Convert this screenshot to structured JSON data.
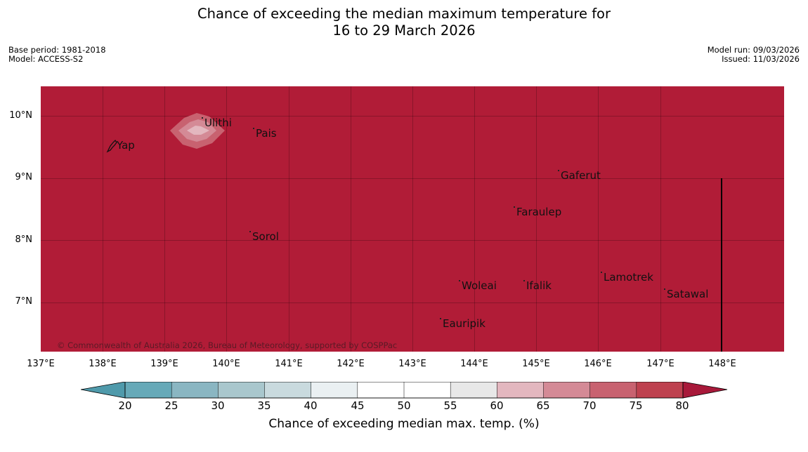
{
  "title_line1": "Chance of exceeding the median maximum temperature for",
  "title_line2": "16 to 29 March 2026",
  "meta_left": [
    "Base period: 1981-2018",
    "Model: ACCESS-S2"
  ],
  "meta_right": [
    "Model run: 09/03/2026",
    "Issued: 11/03/2026"
  ],
  "map": {
    "background_color": "#b11c37",
    "lon_ticks": [
      "137°E",
      "138°E",
      "139°E",
      "140°E",
      "141°E",
      "142°E",
      "143°E",
      "144°E",
      "145°E",
      "146°E",
      "147°E",
      "148°E"
    ],
    "lat_ticks": [
      "10°N",
      "9°N",
      "8°N",
      "7°N"
    ],
    "places": [
      {
        "name": "Yap",
        "lon": 138.2,
        "lat": 9.5
      },
      {
        "name": "Ulithi",
        "lon": 139.7,
        "lat": 9.9
      },
      {
        "name": "Pais",
        "lon": 140.45,
        "lat": 9.73
      },
      {
        "name": "Gaferut",
        "lon": 145.37,
        "lat": 9.03
      },
      {
        "name": "Faraulep",
        "lon": 144.7,
        "lat": 8.44
      },
      {
        "name": "Sorol",
        "lon": 140.4,
        "lat": 8.04
      },
      {
        "name": "Lamotrek",
        "lon": 146.05,
        "lat": 7.37
      },
      {
        "name": "Woleai",
        "lon": 143.8,
        "lat": 7.25
      },
      {
        "name": "Ifalik",
        "lon": 144.83,
        "lat": 7.25
      },
      {
        "name": "Satawal",
        "lon": 147.07,
        "lat": 7.12
      },
      {
        "name": "Eauripik",
        "lon": 143.45,
        "lat": 6.65
      }
    ],
    "copyright": "© Commonwealth of Australia 2026, Bureau of Meteorology, supported by COSPPac"
  },
  "colorbar": {
    "ticks": [
      "20",
      "25",
      "30",
      "35",
      "40",
      "45",
      "50",
      "55",
      "60",
      "65",
      "70",
      "75",
      "80"
    ],
    "colors": [
      "#66a9b8",
      "#8ab6c2",
      "#a9c7cd",
      "#c9dade",
      "#eaf0f2",
      "#ffffff",
      "#ffffff",
      "#e8e8e8",
      "#e3b7bf",
      "#d48a96",
      "#c86270",
      "#be414f"
    ],
    "low_extend_color": "#4f9aab",
    "high_extend_color": "#a8193a",
    "label": "Chance of exceeding median max. temp. (%)"
  }
}
